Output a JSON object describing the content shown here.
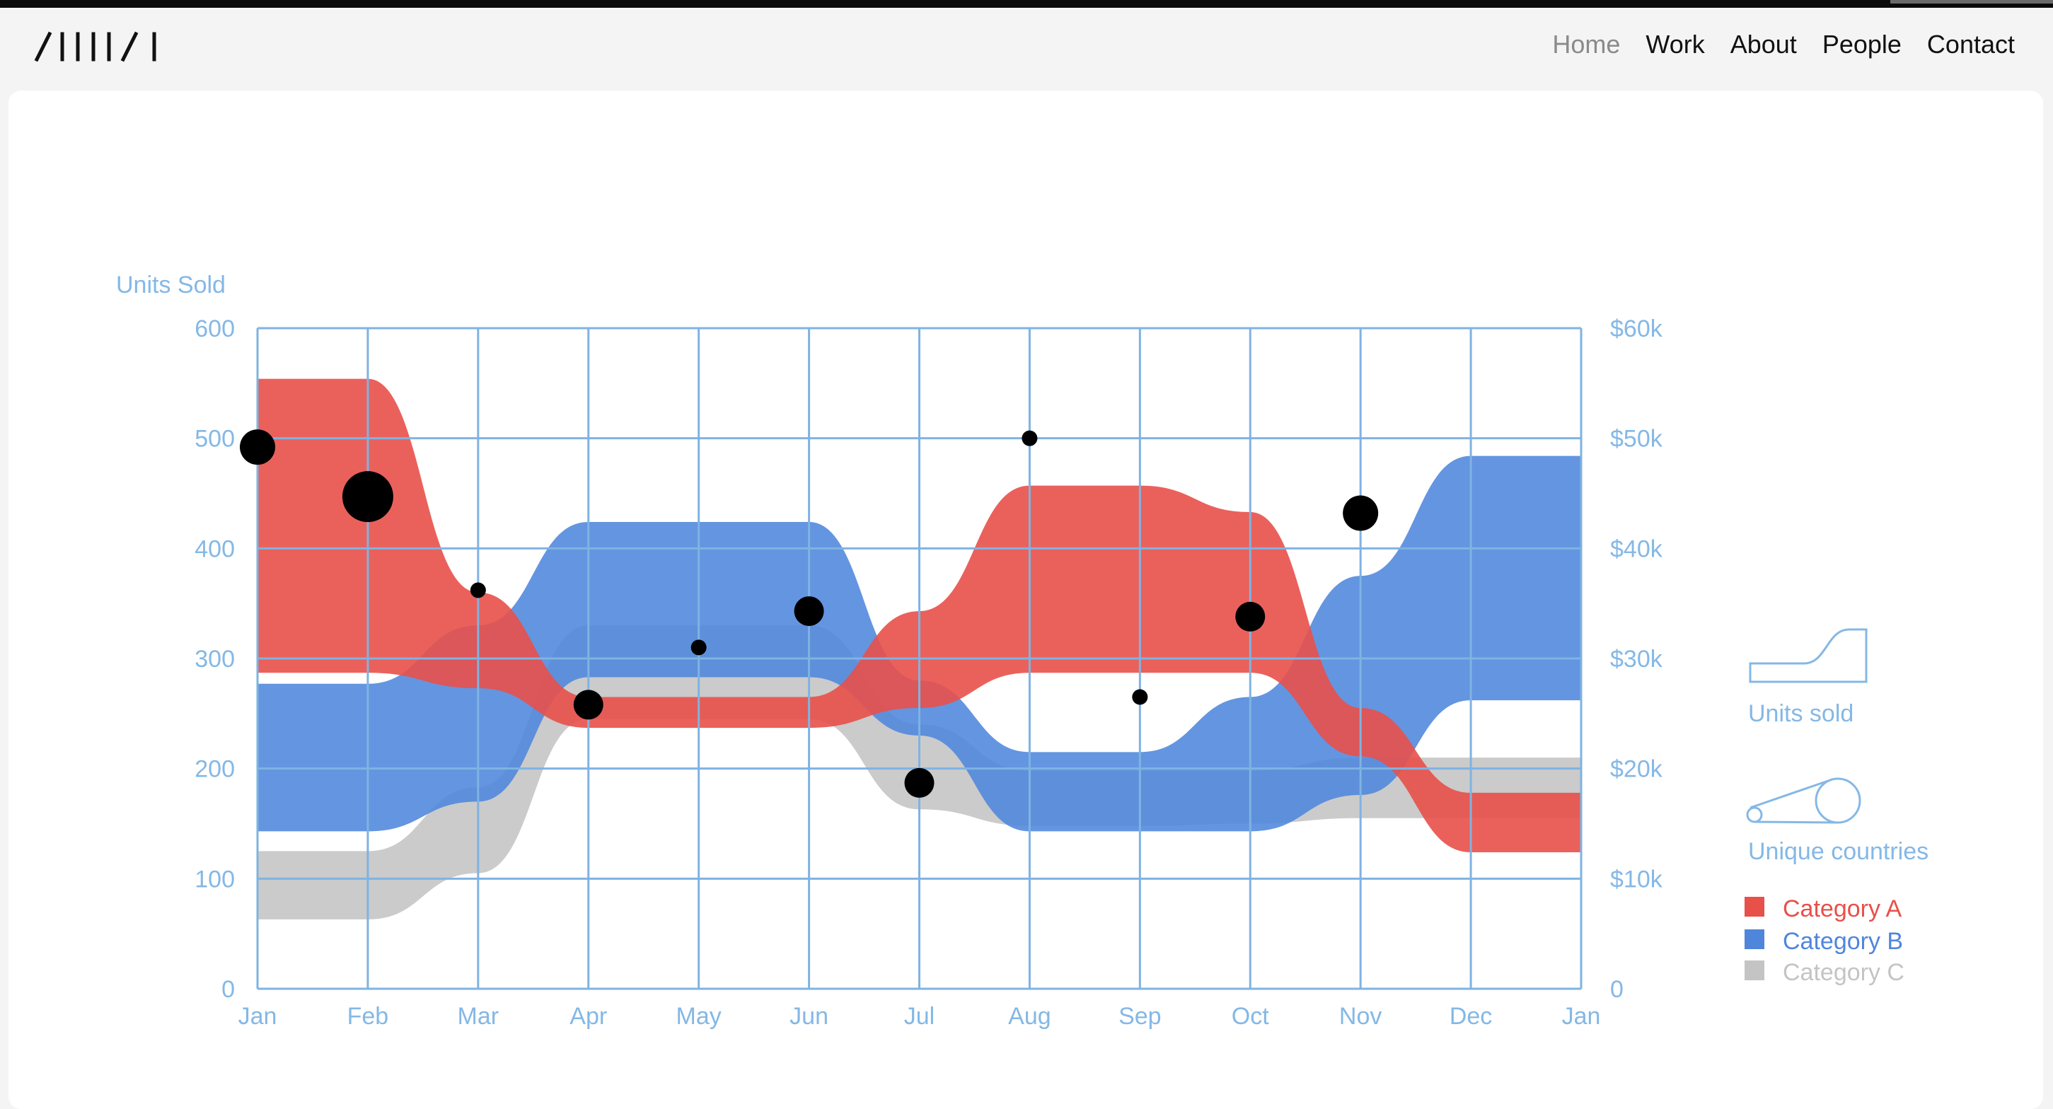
{
  "site": {
    "logo_text": "/IIII/I"
  },
  "nav": {
    "items": [
      {
        "label": "Home",
        "active": true
      },
      {
        "label": "Work",
        "active": false
      },
      {
        "label": "About",
        "active": false
      },
      {
        "label": "People",
        "active": false
      },
      {
        "label": "Contact",
        "active": false
      }
    ]
  },
  "colors": {
    "category_a": "#e8504a",
    "category_b": "#4f86dc",
    "category_c": "#c4c4c4",
    "grid": "#7fb3e2",
    "label": "#84b8e6"
  },
  "chart_data": {
    "type": "area",
    "title": "",
    "ylabel_left": "Units Sold",
    "x_ticks": [
      "Jan",
      "Feb",
      "Mar",
      "Apr",
      "May",
      "Jun",
      "Jul",
      "Aug",
      "Sep",
      "Oct",
      "Nov",
      "Dec",
      "Jan"
    ],
    "y_left_ticks": [
      "0",
      "100",
      "200",
      "300",
      "400",
      "500",
      "600"
    ],
    "y_right_ticks": [
      "0",
      "$10k",
      "$20k",
      "$30k",
      "$40k",
      "$50k",
      "$60k"
    ],
    "ylim_left": [
      0,
      600
    ],
    "ylim_right": [
      0,
      60000
    ],
    "grid": true,
    "legend_position": "right",
    "series": [
      {
        "name": "Category A",
        "upper": [
          554,
          554,
          360,
          265,
          265,
          265,
          343,
          457,
          457,
          433,
          255,
          178,
          178
        ],
        "lower": [
          287,
          287,
          273,
          237,
          237,
          237,
          255,
          287,
          287,
          287,
          211,
          124,
          124
        ]
      },
      {
        "name": "Category B",
        "upper": [
          277,
          277,
          330,
          424,
          424,
          424,
          280,
          215,
          215,
          265,
          375,
          484,
          484
        ],
        "lower": [
          143,
          143,
          170,
          283,
          283,
          283,
          230,
          143,
          143,
          143,
          176,
          262,
          262
        ]
      },
      {
        "name": "Category C",
        "upper": [
          125,
          125,
          183,
          330,
          330,
          330,
          240,
          198,
          198,
          198,
          210,
          210,
          210
        ],
        "lower": [
          63,
          63,
          105,
          245,
          245,
          245,
          163,
          148,
          148,
          150,
          155,
          155,
          155
        ]
      }
    ],
    "points": [
      {
        "x": "Jan",
        "units": 492,
        "size": "large"
      },
      {
        "x": "Feb",
        "units": 447,
        "size": "xlarge"
      },
      {
        "x": "Mar",
        "units": 362,
        "size": "small"
      },
      {
        "x": "Apr",
        "units": 258,
        "size": "medium"
      },
      {
        "x": "May",
        "units": 310,
        "size": "small"
      },
      {
        "x": "Jun",
        "units": 343,
        "size": "medium"
      },
      {
        "x": "Jul",
        "units": 187,
        "size": "medium"
      },
      {
        "x": "Aug",
        "units": 500,
        "size": "small"
      },
      {
        "x": "Sep",
        "units": 265,
        "size": "small"
      },
      {
        "x": "Oct",
        "units": 338,
        "size": "medium"
      },
      {
        "x": "Nov",
        "units": 432,
        "size": "large"
      }
    ],
    "legend": {
      "units_sold_label": "Units sold",
      "unique_countries_label": "Unique countries",
      "categories": [
        "Category A",
        "Category B",
        "Category C"
      ]
    }
  }
}
